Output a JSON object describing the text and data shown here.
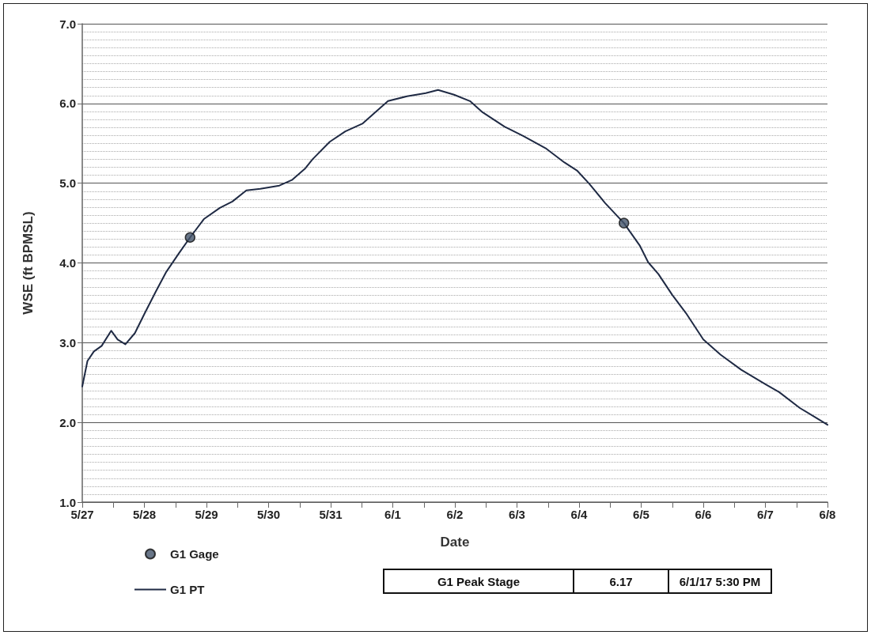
{
  "chart_data": {
    "type": "line",
    "xlabel": "Date",
    "ylabel": "WSE (ft BPMSL)",
    "xlim": [
      "--05-27T00:00",
      "--06-08T00:00"
    ],
    "xticks": [
      {
        "value": "--05-27",
        "label": "5/27"
      },
      {
        "value": "--05-28",
        "label": "5/28"
      },
      {
        "value": "--05-29",
        "label": "5/29"
      },
      {
        "value": "--05-30",
        "label": "5/30"
      },
      {
        "value": "--05-31",
        "label": "5/31"
      },
      {
        "value": "--06-01",
        "label": "6/1"
      },
      {
        "value": "--06-02",
        "label": "6/2"
      },
      {
        "value": "--06-03",
        "label": "6/3"
      },
      {
        "value": "--06-04",
        "label": "6/4"
      },
      {
        "value": "--06-05",
        "label": "6/5"
      },
      {
        "value": "--06-06",
        "label": "6/6"
      },
      {
        "value": "--06-07",
        "label": "6/7"
      },
      {
        "value": "--06-08",
        "label": "6/8"
      }
    ],
    "ylim": [
      1,
      7
    ],
    "yticks": [
      {
        "value": 1,
        "label": "1.0"
      },
      {
        "value": 2,
        "label": "2.0"
      },
      {
        "value": 3,
        "label": "3.0"
      },
      {
        "value": 4,
        "label": "4.0"
      },
      {
        "value": 5,
        "label": "5.0"
      },
      {
        "value": 6,
        "label": "6.0"
      },
      {
        "value": 7,
        "label": "7.0"
      }
    ],
    "grid": "y",
    "legend": "bottom left",
    "series": [
      {
        "name": "G1 Gage",
        "type": "scatter",
        "marker": "circle",
        "color": "#44546a",
        "x": [
          "--05-28T17:40",
          "--06-04T17:20"
        ],
        "values": [
          4.32,
          4.5
        ]
      },
      {
        "name": "G1 PT",
        "marker": "none",
        "line_style": "solid",
        "color": "#1f2a44",
        "x": [
          "--05-27T00:00",
          "--05-27T02:00",
          "--05-27T04:30",
          "--05-27T07:30",
          "--05-27T11:10",
          "--05-27T13:40",
          "--05-27T16:40",
          "--05-27T20:20",
          "--05-28T00:00",
          "--05-28T04:15",
          "--05-28T08:30",
          "--05-28T13:20",
          "--05-28T17:40",
          "--05-28T23:00",
          "--05-29T05:10",
          "--05-29T10:00",
          "--05-29T15:25",
          "--05-29T20:50",
          "--05-30T04:10",
          "--05-30T09:00",
          "--05-30T14:00",
          "--05-30T17:00",
          "--05-30T23:40",
          "--05-31T05:40",
          "--05-31T12:25",
          "--05-31T17:55",
          "--05-31T22:10",
          "--06-01T05:30",
          "--06-01T12:45",
          "--06-01T17:30",
          "--06-01T23:40",
          "--06-02T05:50",
          "--06-02T10:40",
          "--06-02T19:10",
          "--06-03T02:30",
          "--06-03T11:00",
          "--06-03T18:20",
          "--06-03T23:10",
          "--06-04T04:00",
          "--06-04T10:05",
          "--06-04T17:20",
          "--06-04T23:25",
          "--06-05T02:40",
          "--06-05T06:40",
          "--06-05T12:00",
          "--06-05T17:20",
          "--06-06T00:00",
          "--06-06T06:40",
          "--06-06T14:40",
          "--06-07T00:00",
          "--06-07T05:20",
          "--06-07T13:20",
          "--06-07T20:00",
          "--06-08T00:00"
        ],
        "values": [
          2.45,
          2.77,
          2.89,
          2.96,
          3.15,
          3.04,
          2.98,
          3.12,
          3.36,
          3.63,
          3.89,
          4.12,
          4.32,
          4.55,
          4.69,
          4.77,
          4.91,
          4.93,
          4.97,
          5.04,
          5.18,
          5.3,
          5.52,
          5.65,
          5.75,
          5.91,
          6.03,
          6.09,
          6.13,
          6.17,
          6.11,
          6.03,
          5.89,
          5.71,
          5.59,
          5.44,
          5.26,
          5.16,
          4.99,
          4.75,
          4.5,
          4.22,
          4.01,
          3.86,
          3.6,
          3.37,
          3.04,
          2.85,
          2.66,
          2.48,
          2.38,
          2.18,
          2.05,
          1.97
        ]
      }
    ],
    "annotations": [
      "G1 Peak Stage",
      "6.17",
      "6/1/17 5:30 PM"
    ]
  }
}
